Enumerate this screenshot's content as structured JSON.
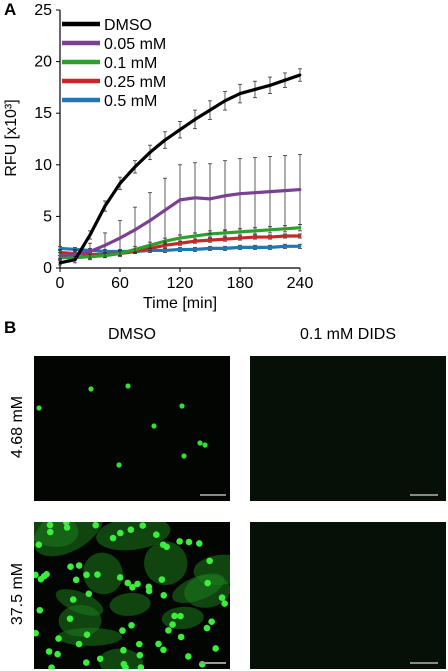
{
  "panel_a_label": "A",
  "panel_b_label": "B",
  "chart_data": {
    "type": "line",
    "xlabel": "Time [min]",
    "ylabel": "RFU [x10³]",
    "xlim": [
      0,
      240
    ],
    "ylim": [
      0,
      25
    ],
    "x_ticks": [
      "0",
      "60",
      "120",
      "180",
      "240"
    ],
    "y_ticks": [
      "0",
      "5",
      "10",
      "15",
      "20",
      "25"
    ],
    "legend_position": "top-left",
    "x": [
      0,
      15,
      30,
      45,
      60,
      75,
      90,
      105,
      120,
      135,
      150,
      165,
      180,
      195,
      210,
      225,
      240
    ],
    "series": [
      {
        "name": "DMSO",
        "color": "#000000",
        "values": [
          0.5,
          0.8,
          3.2,
          6.0,
          8.2,
          9.8,
          11.2,
          12.4,
          13.4,
          14.4,
          15.3,
          16.2,
          16.9,
          17.3,
          17.7,
          18.2,
          18.7
        ],
        "errors": [
          0.2,
          0.3,
          0.4,
          0.5,
          0.6,
          0.6,
          0.7,
          0.8,
          0.8,
          0.9,
          0.9,
          0.9,
          0.9,
          0.8,
          0.8,
          0.7,
          0.6
        ]
      },
      {
        "name": "0.05 mM",
        "color": "#7b3f94",
        "values": [
          1.2,
          1.3,
          1.6,
          2.2,
          2.9,
          3.7,
          4.6,
          5.6,
          6.6,
          6.8,
          6.7,
          7.0,
          7.2,
          7.3,
          7.4,
          7.5,
          7.6
        ],
        "errors": [
          0.3,
          0.5,
          0.8,
          1.2,
          1.7,
          2.2,
          2.7,
          3.1,
          3.4,
          3.4,
          3.4,
          3.4,
          3.4,
          3.4,
          3.4,
          3.4,
          3.4
        ]
      },
      {
        "name": "0.1 mM",
        "color": "#2ca02c",
        "values": [
          1.0,
          1.0,
          1.1,
          1.2,
          1.4,
          1.8,
          2.2,
          2.6,
          2.9,
          3.1,
          3.3,
          3.4,
          3.5,
          3.6,
          3.7,
          3.8,
          3.9
        ],
        "errors": [
          0.2,
          0.2,
          0.2,
          0.2,
          0.3,
          0.3,
          0.3,
          0.3,
          0.3,
          0.3,
          0.3,
          0.3,
          0.3,
          0.3,
          0.3,
          0.3,
          0.3
        ]
      },
      {
        "name": "0.25 mM",
        "color": "#c62828",
        "values": [
          1.5,
          1.4,
          1.3,
          1.3,
          1.4,
          1.6,
          1.9,
          2.2,
          2.4,
          2.6,
          2.7,
          2.8,
          2.9,
          3.0,
          3.0,
          3.1,
          3.1
        ],
        "errors": [
          0.3,
          0.3,
          0.2,
          0.2,
          0.2,
          0.2,
          0.2,
          0.2,
          0.2,
          0.2,
          0.2,
          0.2,
          0.2,
          0.2,
          0.2,
          0.2,
          0.2
        ]
      },
      {
        "name": "0.5 mM",
        "color": "#1f77b4",
        "values": [
          1.9,
          1.8,
          1.7,
          1.6,
          1.6,
          1.6,
          1.7,
          1.7,
          1.8,
          1.8,
          1.9,
          1.9,
          2.0,
          2.0,
          2.0,
          2.1,
          2.1
        ],
        "errors": [
          0.2,
          0.2,
          0.2,
          0.2,
          0.2,
          0.2,
          0.2,
          0.2,
          0.2,
          0.2,
          0.2,
          0.2,
          0.2,
          0.2,
          0.2,
          0.2,
          0.2
        ]
      }
    ]
  },
  "panel_b": {
    "columns": [
      "DMSO",
      "0.1 mM DIDS"
    ],
    "rows": [
      "4.68 mM",
      "37.5 mM"
    ]
  }
}
